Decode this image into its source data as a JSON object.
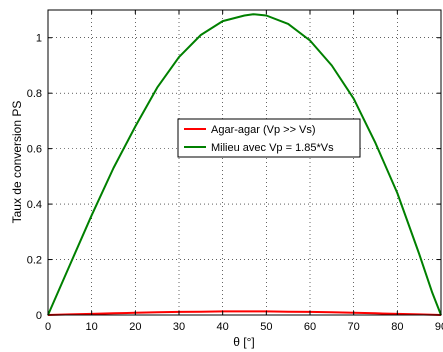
{
  "chart_data": {
    "type": "line",
    "title": "",
    "xlabel": "θ [°]",
    "ylabel": "Taux de conversion PS",
    "xlim": [
      0,
      90
    ],
    "ylim": [
      0,
      1.1
    ],
    "grid": true,
    "legend_position": "center",
    "x_ticks": [
      0,
      10,
      20,
      30,
      40,
      50,
      60,
      70,
      80,
      90
    ],
    "x_tick_labels": [
      "0",
      "10",
      "20",
      "30",
      "40",
      "50",
      "60",
      "70",
      "80",
      "90"
    ],
    "y_ticks": [
      0,
      0.2,
      0.4,
      0.6,
      0.8,
      1
    ],
    "y_tick_labels": [
      "0",
      "0.2",
      "0.4",
      "0.6",
      "0.8",
      "1"
    ],
    "series": [
      {
        "name": "Agar-agar (Vp >> Vs)",
        "color": "#ff0000",
        "x": [
          0,
          5,
          10,
          15,
          20,
          25,
          30,
          35,
          40,
          45,
          50,
          55,
          60,
          65,
          70,
          75,
          80,
          85,
          90
        ],
        "y": [
          0,
          0.002,
          0.004,
          0.006,
          0.008,
          0.01,
          0.011,
          0.012,
          0.013,
          0.013,
          0.013,
          0.012,
          0.011,
          0.01,
          0.008,
          0.006,
          0.004,
          0.002,
          0
        ]
      },
      {
        "name": "Milieu avec Vp = 1.85*Vs",
        "color": "#008000",
        "x": [
          0,
          5,
          10,
          15,
          20,
          25,
          30,
          35,
          40,
          45,
          47,
          50,
          55,
          60,
          65,
          70,
          75,
          80,
          85,
          88,
          90
        ],
        "y": [
          0,
          0.18,
          0.36,
          0.53,
          0.68,
          0.82,
          0.93,
          1.01,
          1.06,
          1.08,
          1.085,
          1.08,
          1.05,
          0.99,
          0.9,
          0.78,
          0.62,
          0.44,
          0.22,
          0.08,
          0
        ]
      }
    ]
  }
}
